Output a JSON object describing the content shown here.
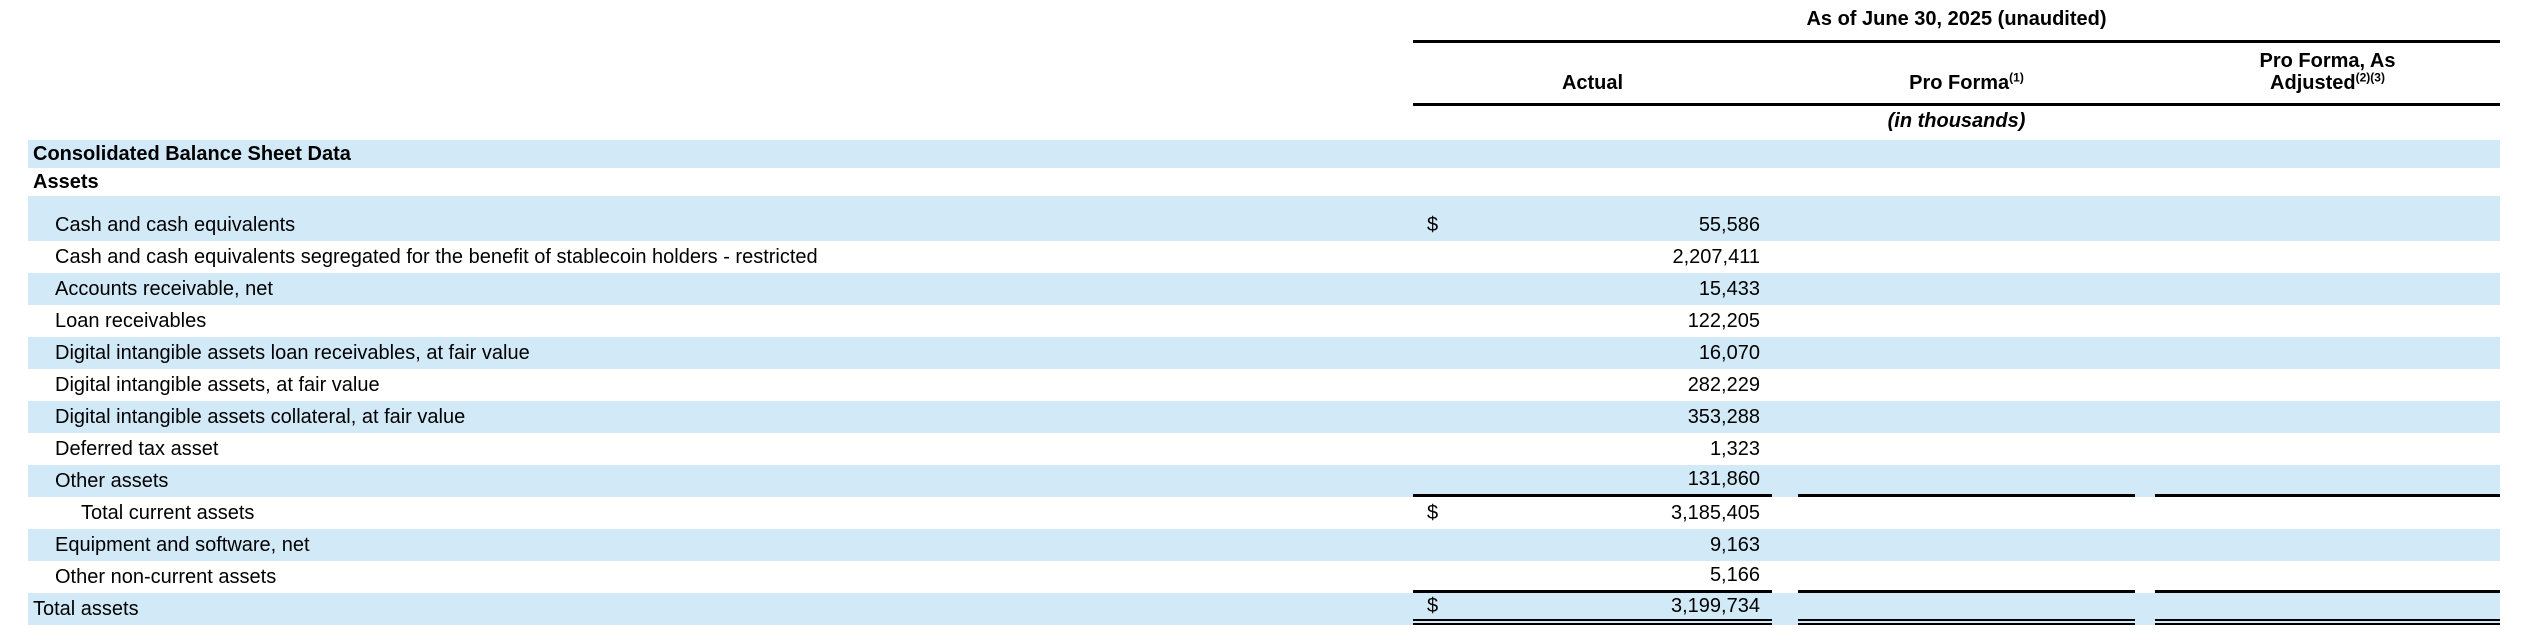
{
  "colors": {
    "highlight_row": "#d2e9f8",
    "rule": "#000000",
    "text": "#000000",
    "page_background": "#ffffff"
  },
  "header": {
    "period_title": "As of June 30, 2025 (unaudited)",
    "units_note": "(in thousands)",
    "columns": [
      {
        "lines": [
          "Actual"
        ],
        "footnote": ""
      },
      {
        "lines": [
          "Pro Forma"
        ],
        "footnote": "(1)"
      },
      {
        "lines": [
          "Pro Forma, As",
          "Adjusted"
        ],
        "footnote": "(2)(3)"
      }
    ]
  },
  "rows": [
    {
      "label": "Consolidated Balance Sheet Data",
      "type": "section",
      "indent": 0,
      "bg": "highlight",
      "currency": "",
      "actual": "",
      "pro_forma": "",
      "pro_forma_adjusted": "",
      "rule_bottom": "none"
    },
    {
      "label": "Assets",
      "type": "section",
      "indent": 0,
      "bg": "plain",
      "currency": "",
      "actual": "",
      "pro_forma": "",
      "pro_forma_adjusted": "",
      "rule_bottom": "none"
    },
    {
      "label": "",
      "type": "spacer",
      "indent": 0,
      "bg": "highlight",
      "currency": "",
      "actual": "",
      "pro_forma": "",
      "pro_forma_adjusted": "",
      "rule_bottom": "none"
    },
    {
      "label": "Cash and cash equivalents",
      "type": "item",
      "indent": 1,
      "bg": "highlight",
      "currency": "$",
      "actual": "55,586",
      "pro_forma": "",
      "pro_forma_adjusted": "",
      "rule_bottom": "none"
    },
    {
      "label": "Cash and cash equivalents segregated for the benefit of stablecoin holders - restricted",
      "type": "item",
      "indent": 1,
      "bg": "plain",
      "currency": "",
      "actual": "2,207,411",
      "pro_forma": "",
      "pro_forma_adjusted": "",
      "rule_bottom": "none"
    },
    {
      "label": "Accounts receivable, net",
      "type": "item",
      "indent": 1,
      "bg": "highlight",
      "currency": "",
      "actual": "15,433",
      "pro_forma": "",
      "pro_forma_adjusted": "",
      "rule_bottom": "none"
    },
    {
      "label": "Loan receivables",
      "type": "item",
      "indent": 1,
      "bg": "plain",
      "currency": "",
      "actual": "122,205",
      "pro_forma": "",
      "pro_forma_adjusted": "",
      "rule_bottom": "none"
    },
    {
      "label": "Digital intangible assets loan receivables, at fair value",
      "type": "item",
      "indent": 1,
      "bg": "highlight",
      "currency": "",
      "actual": "16,070",
      "pro_forma": "",
      "pro_forma_adjusted": "",
      "rule_bottom": "none"
    },
    {
      "label": "Digital intangible assets, at fair value",
      "type": "item",
      "indent": 1,
      "bg": "plain",
      "currency": "",
      "actual": "282,229",
      "pro_forma": "",
      "pro_forma_adjusted": "",
      "rule_bottom": "none"
    },
    {
      "label": "Digital intangible assets collateral, at fair value",
      "type": "item",
      "indent": 1,
      "bg": "highlight",
      "currency": "",
      "actual": "353,288",
      "pro_forma": "",
      "pro_forma_adjusted": "",
      "rule_bottom": "none"
    },
    {
      "label": "Deferred tax asset",
      "type": "item",
      "indent": 1,
      "bg": "plain",
      "currency": "",
      "actual": "1,323",
      "pro_forma": "",
      "pro_forma_adjusted": "",
      "rule_bottom": "none"
    },
    {
      "label": "Other assets",
      "type": "item",
      "indent": 1,
      "bg": "highlight",
      "currency": "",
      "actual": "131,860",
      "pro_forma": "",
      "pro_forma_adjusted": "",
      "rule_bottom": "single"
    },
    {
      "label": "Total current assets",
      "type": "item",
      "indent": 2,
      "bg": "plain",
      "currency": "$",
      "actual": "3,185,405",
      "pro_forma": "",
      "pro_forma_adjusted": "",
      "rule_bottom": "none"
    },
    {
      "label": "Equipment and software, net",
      "type": "item",
      "indent": 1,
      "bg": "highlight",
      "currency": "",
      "actual": "9,163",
      "pro_forma": "",
      "pro_forma_adjusted": "",
      "rule_bottom": "none"
    },
    {
      "label": "Other non-current assets",
      "type": "item",
      "indent": 1,
      "bg": "plain",
      "currency": "",
      "actual": "5,166",
      "pro_forma": "",
      "pro_forma_adjusted": "",
      "rule_bottom": "single"
    },
    {
      "label": "Total assets",
      "type": "item",
      "indent": 0,
      "bg": "highlight",
      "currency": "$",
      "actual": "3,199,734",
      "pro_forma": "",
      "pro_forma_adjusted": "",
      "rule_bottom": "double"
    }
  ]
}
